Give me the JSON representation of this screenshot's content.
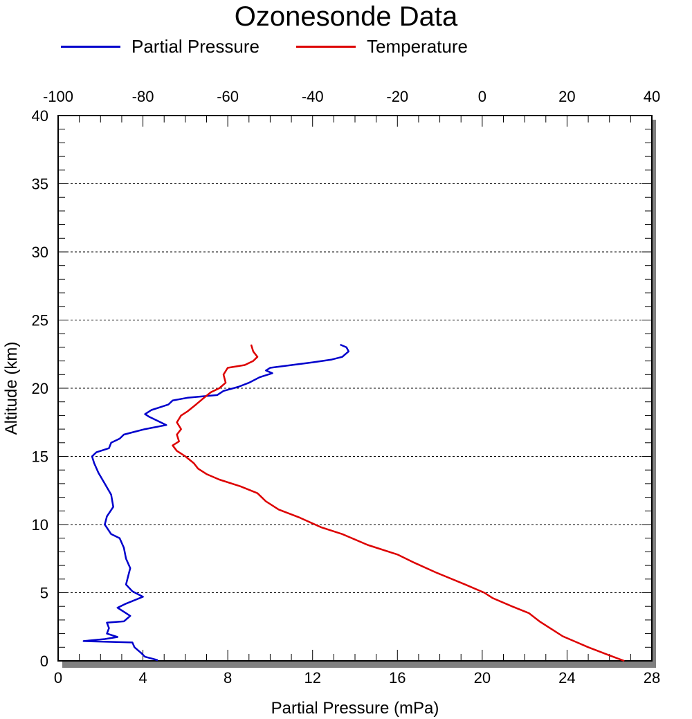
{
  "chart_data": {
    "type": "line",
    "title": "Ozonesonde Data",
    "xlabel": "Partial Pressure (mPa)",
    "ylabel": "Altitude (km)",
    "xlim": [
      0,
      28
    ],
    "x2lim": [
      -100,
      40
    ],
    "ylim": [
      0,
      40
    ],
    "x_ticks": [
      0,
      4,
      8,
      12,
      16,
      20,
      24,
      28
    ],
    "x2_ticks": [
      -100,
      -80,
      -60,
      -40,
      -20,
      0,
      20,
      40
    ],
    "y_ticks": [
      0,
      5,
      10,
      15,
      20,
      25,
      30,
      35,
      40
    ],
    "grid": "horizontal dashed",
    "legend_position": "top",
    "series": [
      {
        "name": "Partial Pressure",
        "color": "#0000cc",
        "axis": "bottom",
        "points": [
          [
            4.7,
            0.05
          ],
          [
            4.1,
            0.3
          ],
          [
            3.9,
            0.6
          ],
          [
            3.6,
            1.0
          ],
          [
            3.5,
            1.35
          ],
          [
            1.2,
            1.45
          ],
          [
            2.2,
            1.6
          ],
          [
            2.8,
            1.75
          ],
          [
            2.3,
            2.0
          ],
          [
            2.4,
            2.4
          ],
          [
            2.3,
            2.8
          ],
          [
            3.1,
            2.9
          ],
          [
            3.4,
            3.3
          ],
          [
            3.1,
            3.6
          ],
          [
            2.8,
            3.9
          ],
          [
            3.2,
            4.2
          ],
          [
            4.0,
            4.7
          ],
          [
            3.5,
            5.1
          ],
          [
            3.2,
            5.6
          ],
          [
            3.3,
            6.2
          ],
          [
            3.4,
            6.8
          ],
          [
            3.2,
            7.5
          ],
          [
            3.1,
            8.3
          ],
          [
            2.9,
            9.0
          ],
          [
            2.5,
            9.3
          ],
          [
            2.2,
            10.0
          ],
          [
            2.3,
            10.6
          ],
          [
            2.6,
            11.3
          ],
          [
            2.5,
            12.2
          ],
          [
            2.2,
            13.0
          ],
          [
            1.9,
            13.8
          ],
          [
            1.7,
            14.5
          ],
          [
            1.6,
            15.0
          ],
          [
            1.8,
            15.3
          ],
          [
            2.4,
            15.6
          ],
          [
            2.5,
            16.0
          ],
          [
            2.9,
            16.3
          ],
          [
            3.1,
            16.6
          ],
          [
            3.6,
            16.8
          ],
          [
            4.1,
            17.0
          ],
          [
            5.1,
            17.3
          ],
          [
            4.7,
            17.6
          ],
          [
            4.3,
            17.9
          ],
          [
            4.1,
            18.1
          ],
          [
            4.4,
            18.4
          ],
          [
            4.8,
            18.6
          ],
          [
            5.2,
            18.8
          ],
          [
            5.4,
            19.1
          ],
          [
            6.1,
            19.3
          ],
          [
            7.5,
            19.5
          ],
          [
            7.8,
            19.8
          ],
          [
            8.5,
            20.1
          ],
          [
            9.0,
            20.4
          ],
          [
            9.5,
            20.8
          ],
          [
            10.1,
            21.1
          ],
          [
            9.8,
            21.3
          ],
          [
            10.0,
            21.5
          ],
          [
            12.0,
            21.9
          ],
          [
            12.9,
            22.1
          ],
          [
            13.4,
            22.3
          ],
          [
            13.7,
            22.7
          ],
          [
            13.6,
            23.0
          ],
          [
            13.3,
            23.2
          ]
        ]
      },
      {
        "name": "Temperature",
        "color": "#dd0000",
        "axis": "top",
        "points": [
          [
            33.5,
            0.0
          ],
          [
            30.0,
            0.4
          ],
          [
            25.0,
            1.0
          ],
          [
            22.0,
            1.4
          ],
          [
            19.0,
            1.8
          ],
          [
            16.5,
            2.3
          ],
          [
            13.5,
            2.9
          ],
          [
            11.0,
            3.5
          ],
          [
            7.0,
            4.0
          ],
          [
            2.5,
            4.6
          ],
          [
            0.5,
            5.0
          ],
          [
            -4.0,
            5.6
          ],
          [
            -11.0,
            6.5
          ],
          [
            -16.0,
            7.2
          ],
          [
            -20.0,
            7.8
          ],
          [
            -27.0,
            8.5
          ],
          [
            -33.0,
            9.3
          ],
          [
            -38.0,
            9.8
          ],
          [
            -43.0,
            10.5
          ],
          [
            -48.0,
            11.1
          ],
          [
            -51.0,
            11.7
          ],
          [
            -53.0,
            12.3
          ],
          [
            -57.0,
            12.8
          ],
          [
            -62.0,
            13.3
          ],
          [
            -65.0,
            13.7
          ],
          [
            -67.0,
            14.1
          ],
          [
            -68.0,
            14.5
          ],
          [
            -70.0,
            15.0
          ],
          [
            -72.0,
            15.4
          ],
          [
            -73.0,
            15.8
          ],
          [
            -71.5,
            16.1
          ],
          [
            -72.0,
            16.6
          ],
          [
            -71.0,
            17.0
          ],
          [
            -72.0,
            17.5
          ],
          [
            -71.0,
            18.0
          ],
          [
            -69.5,
            18.3
          ],
          [
            -67.5,
            18.8
          ],
          [
            -66.0,
            19.2
          ],
          [
            -64.0,
            19.7
          ],
          [
            -62.0,
            20.0
          ],
          [
            -60.5,
            20.4
          ],
          [
            -61.0,
            21.0
          ],
          [
            -60.0,
            21.5
          ],
          [
            -56.0,
            21.7
          ],
          [
            -54.0,
            22.0
          ],
          [
            -53.0,
            22.3
          ],
          [
            -54.0,
            22.7
          ],
          [
            -54.5,
            23.2
          ]
        ]
      }
    ]
  }
}
